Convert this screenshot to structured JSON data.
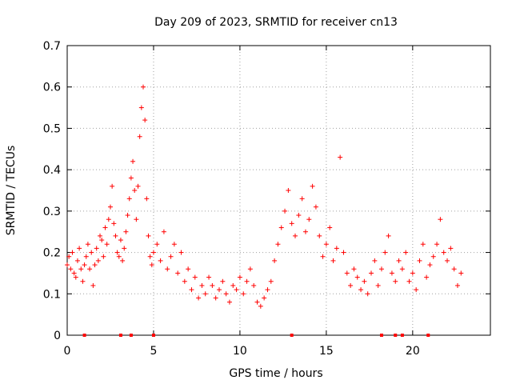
{
  "chart_data": {
    "type": "scatter",
    "title": "Day 209 of 2023, SRMTID for receiver cn13",
    "xlabel": "GPS time / hours",
    "ylabel": "SRMTID / TECUs",
    "xlim": [
      0,
      24.5
    ],
    "ylim": [
      0,
      0.7
    ],
    "xticks": [
      0,
      5,
      10,
      15,
      20
    ],
    "yticks": [
      0,
      0.1,
      0.2,
      0.3,
      0.4,
      0.5,
      0.6,
      0.7
    ],
    "grid": true,
    "marker": "plus",
    "color": "#ff0000",
    "series": [
      {
        "name": "SRMTID",
        "x": [
          0.0,
          0.1,
          0.2,
          0.3,
          0.4,
          0.5,
          0.6,
          0.7,
          0.8,
          0.9,
          1.0,
          1.1,
          1.2,
          1.3,
          1.4,
          1.5,
          1.6,
          1.7,
          1.8,
          1.9,
          2.0,
          2.1,
          2.2,
          2.3,
          2.4,
          2.5,
          2.6,
          2.7,
          2.8,
          2.9,
          3.0,
          3.1,
          3.2,
          3.3,
          3.4,
          3.5,
          3.6,
          3.7,
          3.8,
          3.9,
          4.0,
          4.1,
          4.2,
          4.3,
          4.4,
          4.5,
          4.6,
          4.7,
          4.8,
          4.9,
          5.0,
          5.2,
          5.4,
          5.6,
          5.8,
          6.0,
          6.2,
          6.4,
          6.6,
          6.8,
          7.0,
          7.2,
          7.4,
          7.6,
          7.8,
          8.0,
          8.2,
          8.4,
          8.6,
          8.8,
          9.0,
          9.2,
          9.4,
          9.6,
          9.8,
          10.0,
          10.2,
          10.4,
          10.6,
          10.8,
          11.0,
          11.2,
          11.4,
          11.6,
          11.8,
          12.0,
          12.2,
          12.4,
          12.6,
          12.8,
          13.0,
          13.2,
          13.4,
          13.6,
          13.8,
          14.0,
          14.2,
          14.4,
          14.6,
          14.8,
          15.0,
          15.2,
          15.4,
          15.6,
          15.8,
          16.0,
          16.2,
          16.4,
          16.6,
          16.8,
          17.0,
          17.2,
          17.4,
          17.6,
          17.8,
          18.0,
          18.2,
          18.4,
          18.6,
          18.8,
          19.0,
          19.2,
          19.4,
          19.6,
          19.8,
          20.0,
          20.2,
          20.4,
          20.6,
          20.8,
          21.0,
          21.2,
          21.4,
          21.6,
          21.8,
          22.0,
          22.2,
          22.4,
          22.6,
          22.8
        ],
        "y": [
          0.17,
          0.19,
          0.16,
          0.2,
          0.15,
          0.14,
          0.18,
          0.21,
          0.16,
          0.13,
          0.17,
          0.19,
          0.22,
          0.16,
          0.2,
          0.12,
          0.17,
          0.21,
          0.18,
          0.24,
          0.23,
          0.19,
          0.26,
          0.22,
          0.28,
          0.31,
          0.36,
          0.27,
          0.24,
          0.2,
          0.19,
          0.23,
          0.18,
          0.21,
          0.25,
          0.29,
          0.33,
          0.38,
          0.42,
          0.35,
          0.28,
          0.36,
          0.48,
          0.55,
          0.6,
          0.52,
          0.33,
          0.24,
          0.19,
          0.17,
          0.2,
          0.22,
          0.18,
          0.25,
          0.16,
          0.19,
          0.22,
          0.15,
          0.2,
          0.13,
          0.16,
          0.11,
          0.14,
          0.09,
          0.12,
          0.1,
          0.14,
          0.12,
          0.09,
          0.11,
          0.13,
          0.1,
          0.08,
          0.12,
          0.11,
          0.14,
          0.1,
          0.13,
          0.16,
          0.12,
          0.08,
          0.07,
          0.09,
          0.11,
          0.13,
          0.18,
          0.22,
          0.26,
          0.3,
          0.35,
          0.27,
          0.24,
          0.29,
          0.33,
          0.25,
          0.28,
          0.36,
          0.31,
          0.24,
          0.19,
          0.22,
          0.26,
          0.18,
          0.21,
          0.43,
          0.2,
          0.15,
          0.12,
          0.16,
          0.14,
          0.11,
          0.13,
          0.1,
          0.15,
          0.18,
          0.12,
          0.16,
          0.2,
          0.24,
          0.15,
          0.13,
          0.18,
          0.16,
          0.2,
          0.13,
          0.15,
          0.11,
          0.18,
          0.22,
          0.14,
          0.17,
          0.19,
          0.22,
          0.28,
          0.2,
          0.18,
          0.21,
          0.16,
          0.12,
          0.15
        ]
      }
    ],
    "gap_markers_x": [
      1.0,
      3.1,
      3.7,
      5.0,
      13.0,
      18.2,
      19.0,
      19.4,
      20.9
    ]
  }
}
